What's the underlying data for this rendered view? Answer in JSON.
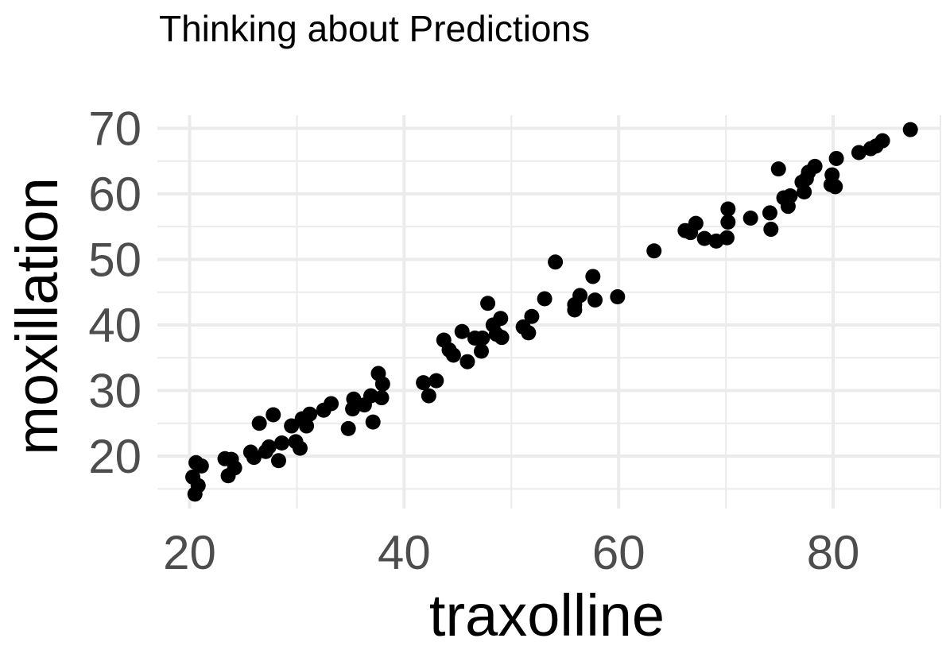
{
  "chart_data": {
    "type": "scatter",
    "title": "Thinking about Predictions",
    "xlabel": "traxolline",
    "ylabel": "moxillation",
    "xlim": [
      17,
      90
    ],
    "ylim": [
      12,
      72
    ],
    "x_ticks": [
      20,
      40,
      60,
      80
    ],
    "y_ticks": [
      20,
      30,
      40,
      50,
      60,
      70
    ],
    "x_tick_labels": [
      "20",
      "40",
      "60",
      "80"
    ],
    "y_tick_labels": [
      "20",
      "30",
      "40",
      "50",
      "60",
      "70"
    ],
    "grid": true,
    "legend": "none",
    "point_color": "#000000",
    "points": [
      [
        20.3,
        16.8
      ],
      [
        20.5,
        14.2
      ],
      [
        20.6,
        19.0
      ],
      [
        20.8,
        15.5
      ],
      [
        21.1,
        18.5
      ],
      [
        23.3,
        19.6
      ],
      [
        23.6,
        17.0
      ],
      [
        23.9,
        19.5
      ],
      [
        24.2,
        18.2
      ],
      [
        25.7,
        20.6
      ],
      [
        26.0,
        19.8
      ],
      [
        26.5,
        25.0
      ],
      [
        27.1,
        20.7
      ],
      [
        27.4,
        21.4
      ],
      [
        27.8,
        26.3
      ],
      [
        28.3,
        19.3
      ],
      [
        28.6,
        22.0
      ],
      [
        29.5,
        24.6
      ],
      [
        29.9,
        22.2
      ],
      [
        30.3,
        21.2
      ],
      [
        30.5,
        25.7
      ],
      [
        30.9,
        24.6
      ],
      [
        31.2,
        26.4
      ],
      [
        32.5,
        27.0
      ],
      [
        33.2,
        28.0
      ],
      [
        34.8,
        24.2
      ],
      [
        35.2,
        27.2
      ],
      [
        35.3,
        28.7
      ],
      [
        36.3,
        27.8
      ],
      [
        36.9,
        29.2
      ],
      [
        37.1,
        25.2
      ],
      [
        37.6,
        32.6
      ],
      [
        37.9,
        28.9
      ],
      [
        38.0,
        31.0
      ],
      [
        41.8,
        31.2
      ],
      [
        42.3,
        29.2
      ],
      [
        43.0,
        31.5
      ],
      [
        43.7,
        37.7
      ],
      [
        44.2,
        36.2
      ],
      [
        44.6,
        35.4
      ],
      [
        45.4,
        39.0
      ],
      [
        45.9,
        34.4
      ],
      [
        46.6,
        38.0
      ],
      [
        47.2,
        36.0
      ],
      [
        47.3,
        38.0
      ],
      [
        47.8,
        43.3
      ],
      [
        48.3,
        40.0
      ],
      [
        48.6,
        38.6
      ],
      [
        49.0,
        41.0
      ],
      [
        49.1,
        38.1
      ],
      [
        51.1,
        39.7
      ],
      [
        51.6,
        38.8
      ],
      [
        51.9,
        41.3
      ],
      [
        53.1,
        44.0
      ],
      [
        54.1,
        49.6
      ],
      [
        55.9,
        43.1
      ],
      [
        55.9,
        42.3
      ],
      [
        56.4,
        44.5
      ],
      [
        57.6,
        47.4
      ],
      [
        57.8,
        43.8
      ],
      [
        59.9,
        44.3
      ],
      [
        63.3,
        51.3
      ],
      [
        66.2,
        54.4
      ],
      [
        66.7,
        54.1
      ],
      [
        67.2,
        55.5
      ],
      [
        68.0,
        53.2
      ],
      [
        69.1,
        52.8
      ],
      [
        70.1,
        53.3
      ],
      [
        70.2,
        57.7
      ],
      [
        70.2,
        55.7
      ],
      [
        72.3,
        56.3
      ],
      [
        74.1,
        57.1
      ],
      [
        74.2,
        54.6
      ],
      [
        74.9,
        63.8
      ],
      [
        75.4,
        59.4
      ],
      [
        75.8,
        58.1
      ],
      [
        76.0,
        59.7
      ],
      [
        77.1,
        61.8
      ],
      [
        77.3,
        60.3
      ],
      [
        77.5,
        62.3
      ],
      [
        77.7,
        63.3
      ],
      [
        78.3,
        64.2
      ],
      [
        79.8,
        61.4
      ],
      [
        79.9,
        62.9
      ],
      [
        80.2,
        61.1
      ],
      [
        80.3,
        65.4
      ],
      [
        82.4,
        66.3
      ],
      [
        83.5,
        66.9
      ],
      [
        84.0,
        67.3
      ],
      [
        84.6,
        68.1
      ],
      [
        87.2,
        69.8
      ]
    ]
  }
}
